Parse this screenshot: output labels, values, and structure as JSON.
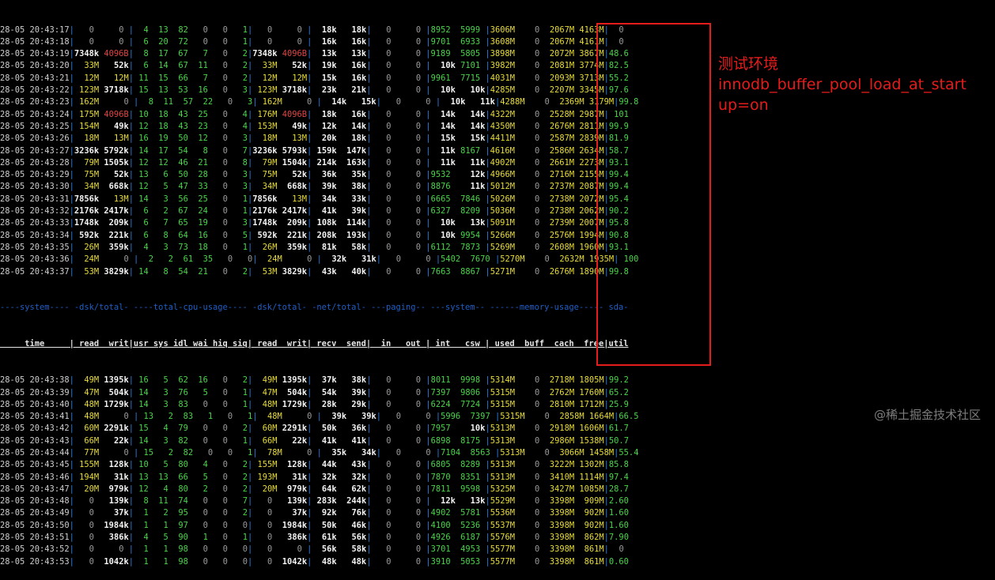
{
  "terminal": {
    "top_rows": [
      "28-05 20:43:17|   0     0 |  4  13  82   0   0   1|   0     0 |  18k   18k|   0     0 |8952  5999 |3606M    0  2067M 4163M|  0",
      "28-05 20:43:18|   0     0 |  6  20  72   0   0   1|   0     0 |  16k   16k|   0     0 |9701  6933 |3608M    0  2067M 4161M|  0",
      "28-05 20:43:19|7348k 4096B|  8  17  67   7   0   2|7348k 4096B|  13k   13k|   0     0 |9189  5805 |3898M    0  2072M 3867M|48.6",
      "28-05 20:43:20|  33M   52k|  6  14  67  11   0   2|  33M   52k|  19k   16k|   0     0 |  10k 7101 |3982M    0  2081M 3774M|82.5",
      "28-05 20:43:21|  12M   12M| 11  15  66   7   0   2|  12M   12M|  15k   16k|   0     0 |9961  7715 |4031M    0  2093M 3713M|55.2",
      "28-05 20:43:22| 123M 3718k| 15  13  53  16   0   3| 123M 3718k|  23k   21k|   0     0 |  10k   10k|4285M    0  2207M 3345M|97.6",
      "28-05 20:43:23| 162M     0 |  8  11  57  22   0   3| 162M     0 |  14k   15k|   0     0 |  10k   11k|4288M    0  2369M 3179M|99.8",
      "28-05 20:43:24| 175M 4096B| 10  18  43  25   0   4| 176M 4096B|  18k   16k|   0     0 |  14k   14k|4322M    0  2528M 2987M| 101",
      "28-05 20:43:25| 154M   49k| 12  18  43  23   0   4| 153M   49k|  12k   14k|   0     0 |  14k   14k|4350M    0  2676M 2811M|99.9",
      "28-05 20:43:26|  18M   13M| 16  19  50  12   0   3|  18M   13M|  20k   18k|   0     0 |  15k   15k|4411M    0  2587M 2839M|81.9",
      "28-05 20:43:27|3236k 5792k| 14  17  54   8   0   7|3236k 5793k| 159k  147k|   0     0 |  11k 8167 |4616M    0  2586M 2634M|58.7",
      "28-05 20:43:28|  79M 1505k| 12  12  46  21   0   8|  79M 1504k| 214k  163k|   0     0 |  11k   11k|4902M    0  2661M 2273M|93.1",
      "28-05 20:43:29|  75M   52k| 13   6  50  28   0   3|  75M   52k|  36k   35k|   0     0 |9532    12k|4966M    0  2716M 2155M|99.4",
      "28-05 20:43:30|  34M  668k| 12   5  47  33   0   3|  34M  668k|  39k   38k|   0     0 |8876    11k|5012M    0  2737M 2087M|99.4",
      "28-05 20:43:31|7856k   13M| 14   3  56  25   0   1|7856k   13M|  34k   33k|   0     0 |6665  7846 |5026M    0  2738M 2072M|95.4",
      "28-05 20:43:32|2176k 2417k|  6   2  67  24   0   1|2176k 2417k|  41k   39k|   0     0 |6327  8209 |5036M    0  2738M 2062M|90.2",
      "28-05 20:43:33|1748k  209k|  6   7  65  19   0   3|1748k  209k| 108k  114k|   0     0 |  10k   13k|5091M    0  2739M 2007M|95.8",
      "28-05 20:43:34| 592k  221k|  6   8  64  16   0   5| 592k  221k| 208k  193k|   0     0 |  10k 9954 |5266M    0  2576M 1994M|90.8",
      "28-05 20:43:35|  26M  359k|  4   3  73  18   0   1|  26M  359k|  81k   58k|   0     0 |6112  7873 |5269M    0  2608M 1960M|93.1",
      "28-05 20:43:36|  24M     0 |  2   2  61  35   0   0|  24M     0 |  32k   31k|   0     0 |5402  7670 |5270M    0  2632M 1935M| 100",
      "28-05 20:43:37|  53M 3829k| 14   8  54  21   0   2|  53M 3829k|  43k   40k|   0     0 |7663  8867 |5271M    0  2676M 1890M|99.8"
    ],
    "section_header": "----system---- -dsk/total- ----total-cpu-usage---- -dsk/total- -net/total- ---paging-- ---system-- ------memory-usage----- sda-",
    "column_header": "     time     | read  writ|usr sys idl wai hiq siq| read  writ| recv  send|  in   out | int   csw | used  buff  cach  free|util",
    "bottom_rows": [
      "28-05 20:43:38|  49M 1395k| 16   5  62  16   0   2|  49M 1395k|  37k   38k|   0     0 |8011  9998 |5314M    0  2718M 1805M|99.2",
      "28-05 20:43:39|  47M  504k| 14   3  76   5   0   1|  47M  504k|  54k   39k|   0     0 |7397  9806 |5315M    0  2762M 1760M|65.2",
      "28-05 20:43:40|  48M 1729k| 14   3  83   0   0   1|  48M 1729k|  28k   29k|   0     0 |6224  7724 |5315M    0  2810M 1712M|25.9",
      "28-05 20:43:41|  48M     0 | 13   2  83   1   0   1|  48M     0 |  39k   39k|   0     0 |5996  7397 |5315M    0  2858M 1664M|66.5",
      "28-05 20:43:42|  60M 2291k| 15   4  79   0   0   2|  60M 2291k|  50k   36k|   0     0 |7957    10k|5313M    0  2918M 1606M|61.7",
      "28-05 20:43:43|  66M   22k| 14   3  82   0   0   1|  66M   22k|  41k   41k|   0     0 |6898  8175 |5313M    0  2986M 1538M|50.7",
      "28-05 20:43:44|  77M     0 | 15   2  82   0   0   1|  78M     0 |  35k   34k|   0     0 |7104  8563 |5313M    0  3066M 1458M|55.4",
      "28-05 20:43:45| 155M  128k| 10   5  80   4   0   2| 155M  128k|  44k   43k|   0     0 |6805  8289 |5313M    0  3222M 1302M|85.8",
      "28-05 20:43:46| 194M   31k| 13  13  66   5   0   2| 193M   31k|  32k   32k|   0     0 |7870  8351 |5313M    0  3410M 1114M|97.4",
      "28-05 20:43:47|  20M  979k| 12   4  80   2   0   2|  20M  979k|  64k   62k|   0     0 |7811  9598 |5325M    0  3427M 1085M|28.7",
      "28-05 20:43:48|   0   139k|  8  11  74   0   0   7|   0   139k| 283k  244k|   0     0 |  12k   13k|5529M    0  3398M  909M|2.60",
      "28-05 20:43:49|   0    37k|  1   2  95   0   0   2|   0    37k|  92k   76k|   0     0 |4902  5781 |5536M    0  3398M  902M|1.60",
      "28-05 20:43:50|   0  1984k|  1   1  97   0   0   0|   0  1984k|  50k   46k|   0     0 |4100  5236 |5537M    0  3398M  902M|1.60",
      "28-05 20:43:51|   0   386k|  4   5  90   1   0   1|   0   386k|  61k   56k|   0     0 |4926  6187 |5576M    0  3398M  862M|7.90",
      "28-05 20:43:52|   0     0 |  1   1  98   0   0   0|   0     0 |  56k   58k|   0     0 |3701  4953 |5577M    0  3398M  861M|  0",
      "28-05 20:43:53|   0  1042k|  1   1  98   0   0   0|   0  1042k|  48k   48k|   0     0 |3910  5053 |5577M    0  3398M  861M|0.60"
    ]
  },
  "annotation": {
    "label": "测试环境\ninnodb_buffer_pool_load_at_start\nup=on",
    "color": "#e51c1c"
  },
  "watermark": "@稀土掘金技术社区"
}
